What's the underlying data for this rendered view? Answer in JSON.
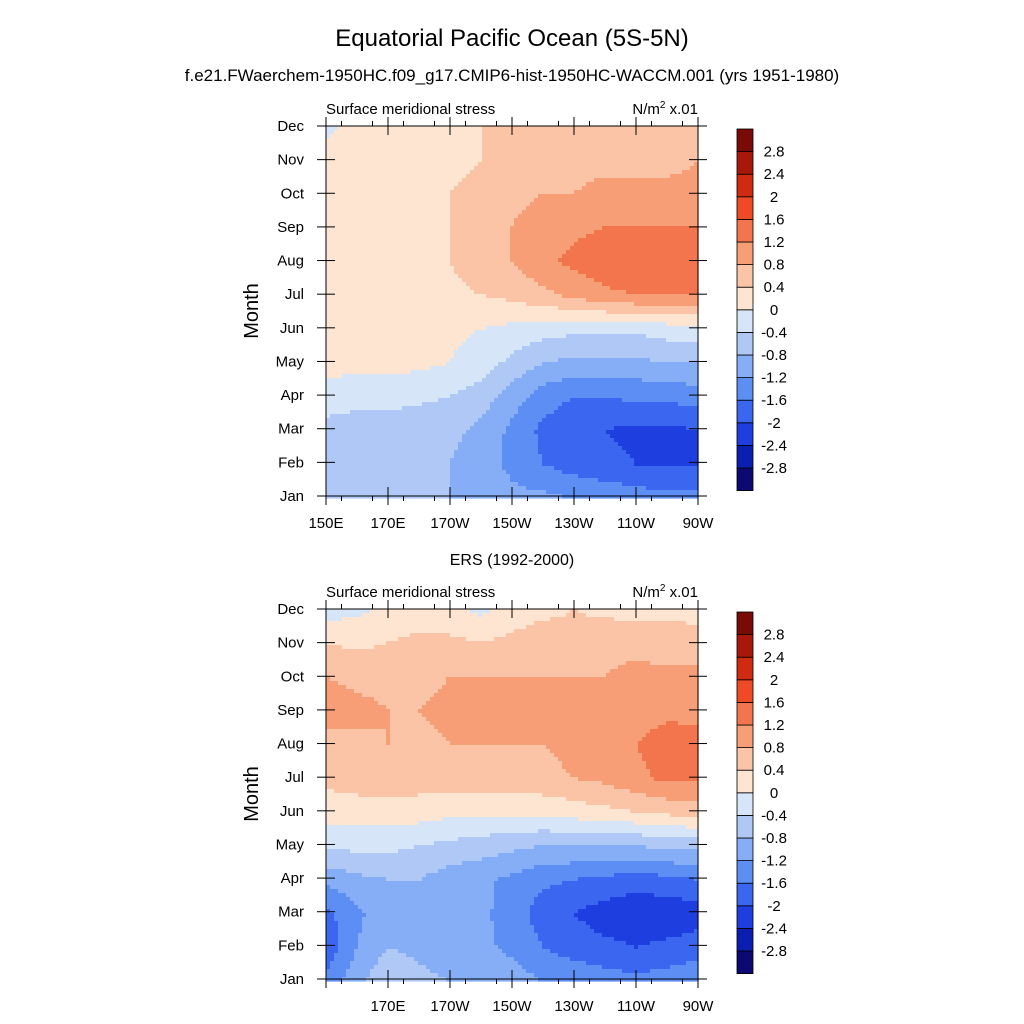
{
  "figure": {
    "title": "Equatorial Pacific Ocean (5S-5N)",
    "subtitle": "f.e21.FWaerchem-1950HC.f09_g17.CMIP6-hist-1950HC-WACCM.001 (yrs 1951-1980)"
  },
  "chart_data": [
    {
      "type": "heatmap",
      "name": "model",
      "left_label": "Surface meridional stress",
      "right_label_base": "N/m",
      "right_label_exp": "2",
      "right_label_scale": " x.01",
      "ylabel": "Month",
      "xlabel": "",
      "x": [
        150,
        160,
        170,
        180,
        190,
        200,
        210,
        220,
        230,
        240,
        250,
        260,
        270
      ],
      "x_units": "degrees east",
      "xlim": [
        150,
        270
      ],
      "x_ticks": [
        150,
        170,
        190,
        210,
        230,
        250,
        270
      ],
      "x_tick_labels": [
        "150E",
        "170E",
        "170W",
        "150W",
        "130W",
        "110W",
        "90W"
      ],
      "y_tick_labels": [
        "Jan",
        "Feb",
        "Mar",
        "Apr",
        "May",
        "Jun",
        "Jul",
        "Aug",
        "Sep",
        "Oct",
        "Nov",
        "Dec"
      ],
      "z": [
        [
          -0.6,
          -0.7,
          -0.7,
          -0.7,
          -0.8,
          -0.9,
          -1.1,
          -1.1,
          -1.2,
          -1.3,
          -1.4,
          -1.5,
          -1.5
        ],
        [
          -0.6,
          -0.7,
          -0.7,
          -0.7,
          -0.8,
          -1.0,
          -1.3,
          -1.6,
          -1.8,
          -1.9,
          -2.0,
          -2.0,
          -2.0
        ],
        [
          -0.6,
          -0.7,
          -0.7,
          -0.7,
          -0.7,
          -0.9,
          -1.3,
          -1.7,
          -1.9,
          -2.0,
          -2.1,
          -2.1,
          -2.0
        ],
        [
          -0.1,
          -0.2,
          -0.2,
          -0.3,
          -0.4,
          -0.6,
          -1.0,
          -1.4,
          -1.6,
          -1.6,
          -1.5,
          -1.5,
          -1.4
        ],
        [
          0.1,
          0.1,
          0.1,
          0.1,
          0.0,
          -0.2,
          -0.5,
          -0.8,
          -0.9,
          -0.9,
          -0.9,
          -0.8,
          -0.8
        ],
        [
          0.1,
          0.2,
          0.2,
          0.2,
          0.1,
          0.0,
          -0.1,
          -0.2,
          -0.3,
          -0.3,
          -0.3,
          -0.2,
          -0.2
        ],
        [
          0.2,
          0.2,
          0.2,
          0.3,
          0.3,
          0.4,
          0.5,
          0.7,
          0.9,
          1.1,
          1.2,
          1.2,
          1.2
        ],
        [
          0.3,
          0.3,
          0.3,
          0.3,
          0.4,
          0.6,
          0.8,
          1.1,
          1.3,
          1.5,
          1.5,
          1.4,
          1.4
        ],
        [
          0.3,
          0.3,
          0.3,
          0.3,
          0.4,
          0.6,
          0.8,
          1.0,
          1.1,
          1.2,
          1.2,
          1.2,
          1.2
        ],
        [
          0.2,
          0.2,
          0.2,
          0.3,
          0.4,
          0.5,
          0.7,
          0.8,
          0.8,
          0.9,
          0.9,
          0.9,
          0.9
        ],
        [
          0.2,
          0.2,
          0.2,
          0.2,
          0.3,
          0.4,
          0.5,
          0.6,
          0.7,
          0.7,
          0.7,
          0.7,
          0.8
        ],
        [
          -0.1,
          0.1,
          0.2,
          0.2,
          0.3,
          0.4,
          0.5,
          0.5,
          0.5,
          0.5,
          0.5,
          0.6,
          0.6
        ]
      ]
    },
    {
      "type": "heatmap",
      "name": "observations",
      "title": "ERS (1992-2000)",
      "left_label": "Surface meridional stress",
      "right_label_base": "N/m",
      "right_label_exp": "2",
      "right_label_scale": " x.01",
      "ylabel": "Month",
      "xlabel": "",
      "x": [
        150,
        160,
        170,
        180,
        190,
        200,
        210,
        220,
        230,
        240,
        250,
        260,
        270
      ],
      "x_units": "degrees east",
      "xlim": [
        150,
        270
      ],
      "x_ticks": [
        150,
        170,
        190,
        210,
        230,
        250,
        270
      ],
      "x_tick_labels": [
        "",
        "170E",
        "170W",
        "150W",
        "130W",
        "110W",
        "90W"
      ],
      "y_tick_labels": [
        "Jan",
        "Feb",
        "Mar",
        "Apr",
        "May",
        "Jun",
        "Jul",
        "Aug",
        "Sep",
        "Oct",
        "Nov",
        "Dec"
      ],
      "z": [
        [
          -1.5,
          -0.9,
          -0.5,
          -0.7,
          -0.8,
          -0.9,
          -1.0,
          -1.2,
          -1.3,
          -1.4,
          -1.5,
          -1.4,
          -1.3
        ],
        [
          -1.9,
          -1.2,
          -0.8,
          -0.9,
          -1.0,
          -1.1,
          -1.3,
          -1.6,
          -1.8,
          -1.9,
          -2.0,
          -1.9,
          -1.8
        ],
        [
          -1.7,
          -1.3,
          -0.9,
          -1.0,
          -1.1,
          -1.1,
          -1.4,
          -1.8,
          -2.0,
          -2.2,
          -2.3,
          -2.3,
          -2.2
        ],
        [
          -1.1,
          -0.9,
          -0.8,
          -0.8,
          -1.0,
          -1.1,
          -1.3,
          -1.5,
          -1.6,
          -1.7,
          -1.8,
          -1.7,
          -1.6
        ],
        [
          -0.3,
          -0.3,
          -0.3,
          -0.4,
          -0.5,
          -0.6,
          -0.7,
          -0.8,
          -0.8,
          -0.8,
          -0.8,
          -0.7,
          -0.7
        ],
        [
          0.2,
          0.2,
          0.2,
          0.2,
          0.1,
          0.1,
          0.1,
          0.1,
          0.2,
          0.3,
          0.4,
          0.5,
          0.6
        ],
        [
          0.5,
          0.6,
          0.6,
          0.6,
          0.6,
          0.6,
          0.7,
          0.7,
          0.8,
          0.9,
          1.1,
          1.3,
          1.3
        ],
        [
          0.6,
          0.7,
          0.8,
          0.7,
          0.8,
          0.8,
          0.8,
          0.8,
          0.9,
          1.0,
          1.2,
          1.4,
          1.3
        ],
        [
          1.0,
          0.9,
          0.8,
          0.8,
          0.9,
          0.9,
          0.9,
          0.9,
          0.9,
          0.9,
          1.0,
          1.1,
          1.1
        ],
        [
          0.8,
          0.7,
          0.7,
          0.7,
          0.8,
          0.8,
          0.8,
          0.8,
          0.8,
          0.8,
          0.9,
          0.9,
          1.0
        ],
        [
          0.4,
          0.3,
          0.4,
          0.5,
          0.5,
          0.4,
          0.5,
          0.6,
          0.5,
          0.7,
          0.7,
          0.6,
          0.5
        ],
        [
          -0.2,
          -0.1,
          0.1,
          0.2,
          0.1,
          -0.1,
          0.2,
          0.3,
          0.4,
          0.3,
          0.2,
          0.3,
          0.3
        ]
      ]
    }
  ],
  "colorbar": {
    "levels": [
      -2.8,
      -2.4,
      -2.0,
      -1.6,
      -1.2,
      -0.8,
      -0.4,
      0.0,
      0.4,
      0.8,
      1.2,
      1.6,
      2.0,
      2.4,
      2.8
    ],
    "tick_labels": [
      "-2.8",
      "-2.4",
      "-2",
      "-1.6",
      "-1.2",
      "-0.8",
      "-0.4",
      "0",
      "0.4",
      "0.8",
      "1.2",
      "1.6",
      "2",
      "2.4",
      "2.8"
    ],
    "colors": [
      "#0c0a72",
      "#0a1fb2",
      "#1e3ee0",
      "#3a66f0",
      "#5d8ef4",
      "#86aef6",
      "#afc8f5",
      "#d6e6f8",
      "#fde5d2",
      "#fbc4a6",
      "#f79e76",
      "#f3754e",
      "#ef4a26",
      "#d02a10",
      "#a8180a",
      "#7a0a05"
    ]
  }
}
